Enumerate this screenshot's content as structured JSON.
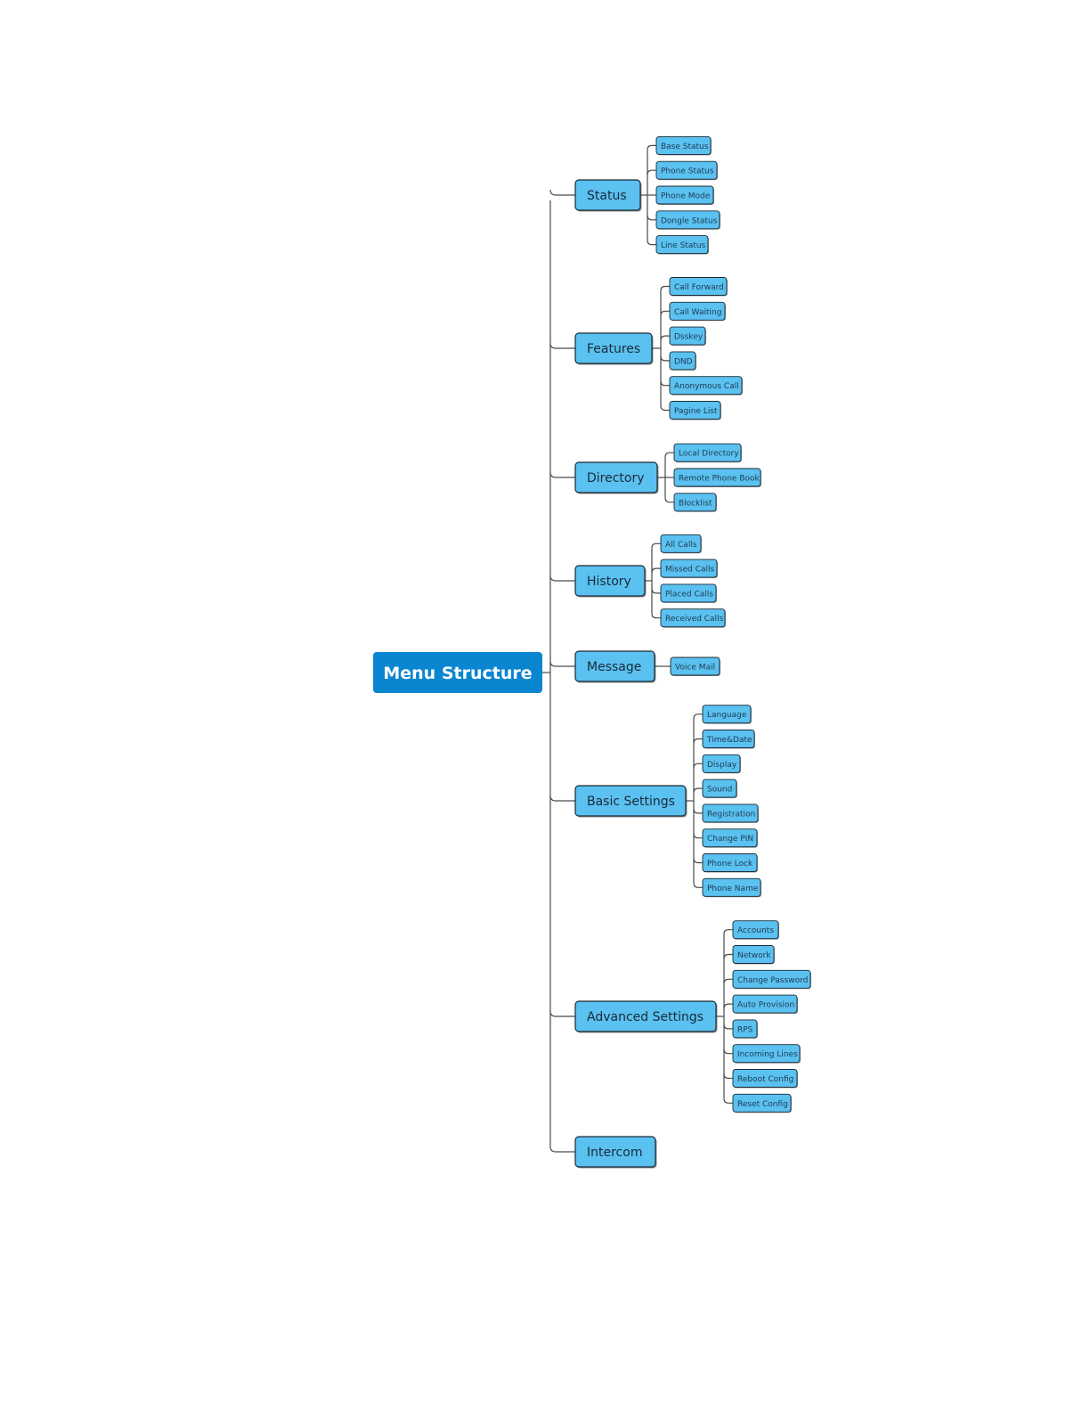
{
  "colors": {
    "root_fill": "#0a86d1",
    "node_fill": "#5ac1f0",
    "node_stroke": "#1d2b36",
    "connector": "#4a4a4a"
  },
  "root": {
    "label": "Menu Structure"
  },
  "categories": [
    {
      "label": "Status",
      "items": [
        "Base Status",
        "Phone Status",
        "Phone Mode",
        "Dongle Status",
        "Line Status"
      ]
    },
    {
      "label": "Features",
      "items": [
        "Call Forward",
        "Call Waiting",
        "Dsskey",
        "DND",
        "Anonymous Call",
        "Pagine List"
      ]
    },
    {
      "label": "Directory",
      "items": [
        "Local Directory",
        "Remote Phone Book",
        "Blocklist"
      ]
    },
    {
      "label": "History",
      "items": [
        "All Calls",
        "Missed Calls",
        "Placed Calls",
        "Received Calls"
      ]
    },
    {
      "label": "Message",
      "items": [
        "Voice Mail"
      ]
    },
    {
      "label": "Basic Settings",
      "items": [
        "Language",
        "Time&Date",
        "Display",
        "Sound",
        "Registration",
        "Change PIN",
        "Phone Lock",
        "Phone Name"
      ]
    },
    {
      "label": "Advanced Settings",
      "items": [
        "Accounts",
        "Network",
        "Change Password",
        "Auto Provision",
        "RPS",
        "Incoming Lines",
        "Reboot Config",
        "Reset Config"
      ]
    },
    {
      "label": "Intercom",
      "items": []
    }
  ]
}
